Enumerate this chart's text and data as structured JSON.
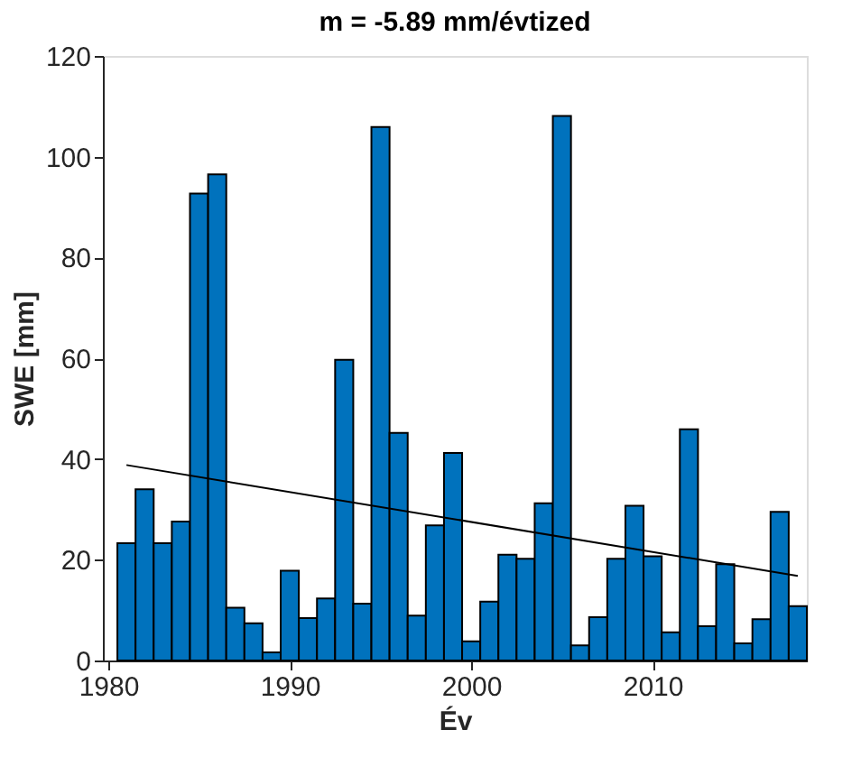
{
  "chart_data": {
    "type": "bar",
    "title": "m = -5.89 mm/évtized",
    "xlabel": "Év",
    "ylabel": "SWE [mm]",
    "x": [
      1981,
      1982,
      1983,
      1984,
      1985,
      1986,
      1987,
      1988,
      1989,
      1990,
      1991,
      1992,
      1993,
      1994,
      1995,
      1996,
      1997,
      1998,
      1999,
      2000,
      2001,
      2002,
      2003,
      2004,
      2005,
      2006,
      2007,
      2008,
      2009,
      2010,
      2011,
      2012,
      2013,
      2014,
      2015,
      2016,
      2017,
      2018
    ],
    "series": [
      {
        "color": "#0072bd",
        "values": [
          23.3,
          34.0,
          23.3,
          27.6,
          92.7,
          96.5,
          10.5,
          7.4,
          1.6,
          17.8,
          8.4,
          12.3,
          59.7,
          11.3,
          105.9,
          45.2,
          8.9,
          26.8,
          41.2,
          3.8,
          11.7,
          21.0,
          20.2,
          31.2,
          108.1,
          3.0,
          8.6,
          20.2,
          30.7,
          20.7,
          5.6,
          45.9,
          6.8,
          19.1,
          3.4,
          8.2,
          29.5,
          10.8
        ]
      },
      {
        "type": "line",
        "color": "#000000",
        "x": [
          1981,
          2018
        ],
        "values": [
          38.8,
          16.8
        ]
      }
    ],
    "xlim": [
      1979.7,
      2018.5
    ],
    "xticks": [
      1980,
      1990,
      2000,
      2010
    ],
    "ylim": [
      0,
      120
    ],
    "yticks": [
      0,
      20,
      40,
      60,
      80,
      100,
      120
    ],
    "grid": false
  }
}
